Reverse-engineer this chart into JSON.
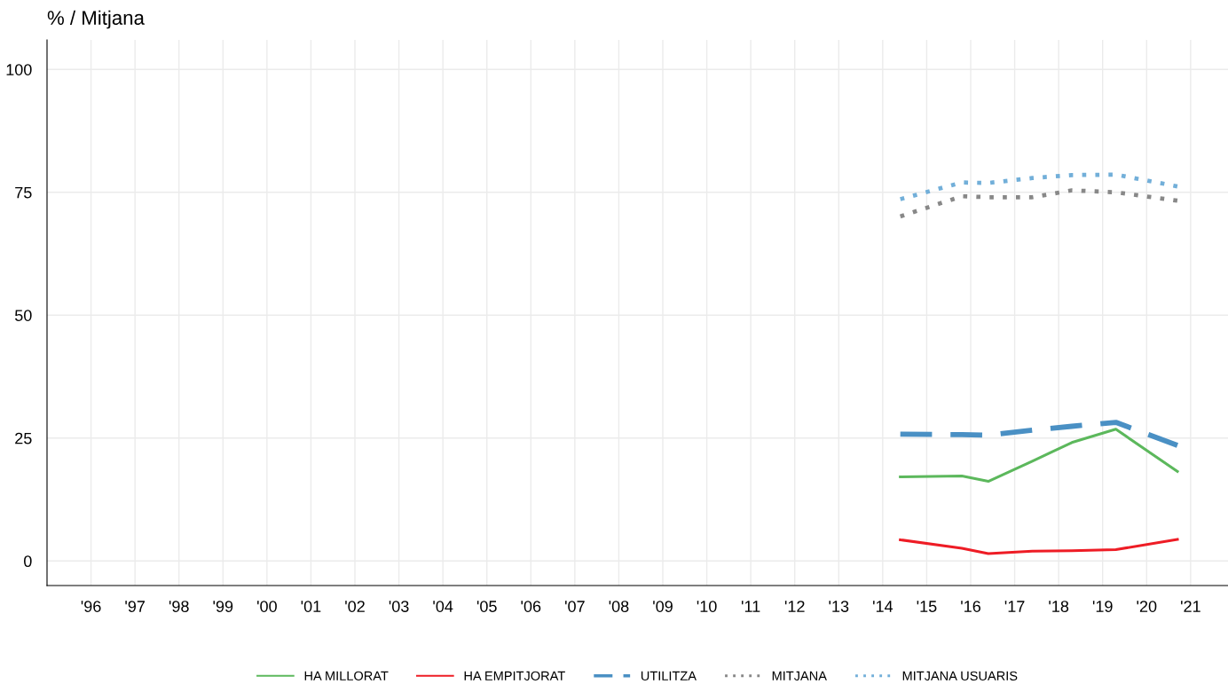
{
  "chart_data": {
    "type": "line",
    "title": "% / Mitjana",
    "x": [
      2014.4,
      2015.8,
      2016.4,
      2017.4,
      2018.3,
      2019.3,
      2020.7
    ],
    "series": [
      {
        "name": "HA MILLORAT",
        "color": "#5cb85c",
        "line_style": "solid",
        "values": [
          17.1,
          17.3,
          16.2,
          20.3,
          24.1,
          26.8,
          18.2
        ]
      },
      {
        "name": "HA EMPITJORAT",
        "color": "#ee1c25",
        "line_style": "solid",
        "values": [
          4.3,
          2.6,
          1.5,
          2.0,
          2.1,
          2.3,
          4.4
        ]
      },
      {
        "name": "UTILITZA",
        "color": "#4a90c4",
        "line_style": "dashed",
        "values": [
          25.8,
          25.7,
          25.6,
          26.6,
          27.4,
          28.2,
          23.5
        ]
      },
      {
        "name": "MITJANA",
        "color": "#888888",
        "line_style": "dotted",
        "values": [
          70.1,
          74.2,
          74.0,
          74.0,
          75.4,
          75.0,
          73.3
        ]
      },
      {
        "name": "MITJANA USUARIS",
        "color": "#72afd9",
        "line_style": "dotted",
        "values": [
          73.6,
          77.0,
          76.9,
          77.9,
          78.5,
          78.6,
          76.2
        ]
      }
    ],
    "xlim": [
      1995,
      2021.85
    ],
    "xticks": [
      {
        "value": 1996,
        "label": "'96"
      },
      {
        "value": 1997,
        "label": "'97"
      },
      {
        "value": 1998,
        "label": "'98"
      },
      {
        "value": 1999,
        "label": "'99"
      },
      {
        "value": 2000,
        "label": "'00"
      },
      {
        "value": 2001,
        "label": "'01"
      },
      {
        "value": 2002,
        "label": "'02"
      },
      {
        "value": 2003,
        "label": "'03"
      },
      {
        "value": 2004,
        "label": "'04"
      },
      {
        "value": 2005,
        "label": "'05"
      },
      {
        "value": 2006,
        "label": "'06"
      },
      {
        "value": 2007,
        "label": "'07"
      },
      {
        "value": 2008,
        "label": "'08"
      },
      {
        "value": 2009,
        "label": "'09"
      },
      {
        "value": 2010,
        "label": "'10"
      },
      {
        "value": 2011,
        "label": "'11"
      },
      {
        "value": 2012,
        "label": "'12"
      },
      {
        "value": 2013,
        "label": "'13"
      },
      {
        "value": 2014,
        "label": "'14"
      },
      {
        "value": 2015,
        "label": "'15"
      },
      {
        "value": 2016,
        "label": "'16"
      },
      {
        "value": 2017,
        "label": "'17"
      },
      {
        "value": 2018,
        "label": "'18"
      },
      {
        "value": 2019,
        "label": "'19"
      },
      {
        "value": 2020,
        "label": "'20"
      },
      {
        "value": 2021,
        "label": "'21"
      }
    ],
    "ylim": [
      -5,
      106
    ],
    "yticks": [
      0,
      25,
      50,
      75,
      100
    ],
    "grid": true,
    "legend": "bottom",
    "marker": "none"
  }
}
